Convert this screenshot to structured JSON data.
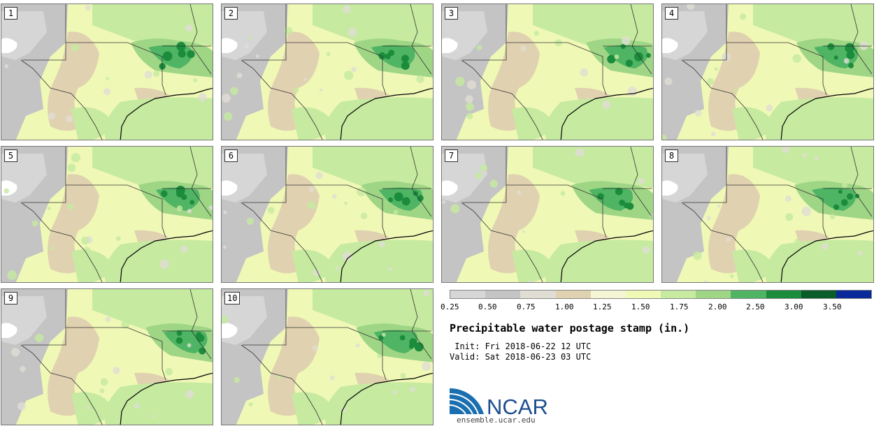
{
  "panels": [
    {
      "label": "1"
    },
    {
      "label": "2"
    },
    {
      "label": "3"
    },
    {
      "label": "4"
    },
    {
      "label": "5"
    },
    {
      "label": "6"
    },
    {
      "label": "7"
    },
    {
      "label": "8"
    },
    {
      "label": "9"
    },
    {
      "label": "10"
    }
  ],
  "legend": {
    "ticks": [
      "0.25",
      "0.50",
      "0.75",
      "1.00",
      "1.25",
      "1.50",
      "1.75",
      "2.00",
      "2.50",
      "3.00",
      "3.50"
    ],
    "colors": [
      "#d6d6d6",
      "#c4c4c4",
      "#e0ddd4",
      "#e0d2b0",
      "#f4f5d5",
      "#f0f8b6",
      "#c6eaa0",
      "#9fd686",
      "#4fb463",
      "#1a8c3c",
      "#0a5c28",
      "#0a2a9a"
    ]
  },
  "title": "Precipitable water postage stamp (in.)",
  "init_text": " Init: Fri 2018-06-22 12 UTC",
  "valid_text": "Valid: Sat 2018-06-23 03 UTC",
  "logo": {
    "brand": "NCAR",
    "url": "ensemble.ucar.edu"
  }
}
